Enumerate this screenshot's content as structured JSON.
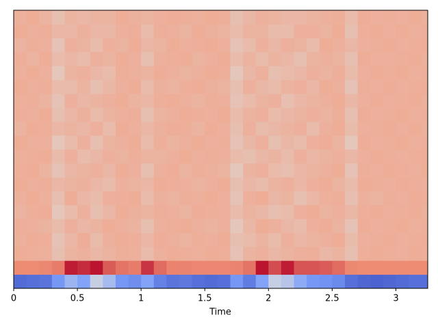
{
  "chart_data": {
    "type": "heatmap",
    "colormap": "coolwarm",
    "clim": [
      -500,
      250
    ],
    "xlabel": "Time",
    "xlim": [
      0,
      3.25
    ],
    "xticks": [
      0,
      0.5,
      1,
      1.5,
      2,
      2.5,
      3
    ],
    "x_bins": [
      0,
      0.1,
      0.2,
      0.3,
      0.4,
      0.5,
      0.6,
      0.7,
      0.8,
      0.9,
      1,
      1.1,
      1.2,
      1.3,
      1.4,
      1.5,
      1.6,
      1.7,
      1.8,
      1.9,
      2,
      2.1,
      2.2,
      2.3,
      2.4,
      2.5,
      2.6,
      2.7,
      2.8,
      2.9,
      3,
      3.1,
      3.2,
      3.25
    ],
    "rows": [
      [
        -430,
        -420,
        -410,
        -330,
        -250,
        -300,
        -170,
        -230,
        -330,
        -350,
        -300,
        -380,
        -410,
        -400,
        -420,
        -430,
        -420,
        -330,
        -390,
        -300,
        -170,
        -200,
        -280,
        -330,
        -340,
        -360,
        -420,
        -440,
        -450,
        -440,
        -430,
        -420,
        -420
      ],
      [
        80,
        80,
        85,
        100,
        220,
        200,
        230,
        140,
        110,
        100,
        190,
        120,
        90,
        90,
        85,
        85,
        85,
        90,
        110,
        230,
        160,
        220,
        150,
        150,
        140,
        120,
        85,
        80,
        80,
        80,
        80,
        80,
        80
      ],
      [
        10,
        5,
        0,
        -40,
        -10,
        0,
        -20,
        -10,
        5,
        0,
        -30,
        0,
        10,
        5,
        0,
        10,
        5,
        -50,
        -10,
        0,
        -20,
        -10,
        0,
        5,
        -20,
        -10,
        -40,
        5,
        10,
        5,
        0,
        10,
        5
      ],
      [
        0,
        10,
        5,
        -50,
        -20,
        10,
        -30,
        0,
        10,
        5,
        -20,
        10,
        0,
        -10,
        5,
        0,
        10,
        -40,
        -30,
        -10,
        -30,
        0,
        -20,
        -10,
        0,
        10,
        -30,
        0,
        5,
        10,
        0,
        5,
        10
      ],
      [
        5,
        0,
        -10,
        -30,
        0,
        -20,
        -10,
        10,
        0,
        -10,
        -40,
        0,
        5,
        10,
        0,
        -10,
        0,
        -60,
        -20,
        10,
        0,
        -20,
        -30,
        0,
        10,
        -10,
        -50,
        10,
        0,
        5,
        10,
        0,
        5
      ],
      [
        -10,
        5,
        10,
        -60,
        -30,
        0,
        -40,
        -20,
        10,
        0,
        -10,
        5,
        0,
        -10,
        10,
        5,
        0,
        -30,
        -10,
        -20,
        -40,
        -30,
        0,
        10,
        -10,
        0,
        -20,
        5,
        10,
        0,
        5,
        10,
        0
      ],
      [
        0,
        10,
        0,
        -40,
        10,
        -20,
        -30,
        0,
        5,
        10,
        -30,
        0,
        -10,
        5,
        0,
        10,
        0,
        -50,
        0,
        10,
        -20,
        -10,
        -40,
        -20,
        0,
        5,
        -40,
        0,
        -10,
        5,
        0,
        10,
        5
      ],
      [
        10,
        0,
        5,
        -20,
        -10,
        0,
        -20,
        -30,
        0,
        -10,
        -20,
        10,
        5,
        0,
        -10,
        0,
        10,
        -40,
        -20,
        -30,
        -10,
        0,
        -20,
        0,
        10,
        -10,
        -30,
        10,
        5,
        0,
        10,
        5,
        0
      ],
      [
        5,
        10,
        -10,
        -50,
        -20,
        -10,
        0,
        -20,
        10,
        0,
        -40,
        0,
        10,
        -10,
        5,
        0,
        -10,
        -60,
        -10,
        0,
        -30,
        -40,
        -20,
        -10,
        0,
        10,
        -50,
        5,
        0,
        10,
        5,
        0,
        10
      ],
      [
        0,
        5,
        10,
        -30,
        0,
        -30,
        -20,
        0,
        -10,
        5,
        -10,
        -10,
        0,
        10,
        0,
        5,
        0,
        -30,
        -40,
        -20,
        -10,
        -30,
        0,
        -20,
        -10,
        0,
        -20,
        0,
        10,
        5,
        0,
        5,
        10
      ],
      [
        10,
        0,
        0,
        -60,
        -30,
        0,
        -40,
        -10,
        0,
        10,
        -30,
        5,
        -10,
        0,
        10,
        0,
        5,
        -50,
        -20,
        0,
        -40,
        -20,
        -30,
        0,
        10,
        -10,
        -60,
        10,
        0,
        5,
        10,
        0,
        5
      ],
      [
        -10,
        10,
        5,
        -20,
        -10,
        -20,
        0,
        -30,
        10,
        0,
        -20,
        0,
        10,
        5,
        -10,
        10,
        0,
        -40,
        0,
        -30,
        -20,
        -10,
        0,
        -30,
        0,
        10,
        -30,
        0,
        5,
        10,
        0,
        10,
        0
      ],
      [
        5,
        0,
        10,
        -40,
        -20,
        0,
        -30,
        -10,
        0,
        5,
        -40,
        -10,
        0,
        10,
        5,
        0,
        10,
        -30,
        -10,
        0,
        -30,
        -20,
        -10,
        0,
        -10,
        5,
        -40,
        10,
        0,
        5,
        10,
        0,
        5
      ],
      [
        0,
        5,
        -10,
        -50,
        0,
        -20,
        -10,
        0,
        10,
        -10,
        -20,
        5,
        10,
        0,
        -10,
        5,
        0,
        -50,
        -30,
        -10,
        0,
        -40,
        -20,
        -10,
        0,
        10,
        -20,
        0,
        10,
        0,
        5,
        10,
        0
      ],
      [
        10,
        0,
        5,
        -30,
        -30,
        -10,
        -40,
        -20,
        0,
        10,
        -30,
        0,
        -10,
        5,
        10,
        0,
        -10,
        -40,
        0,
        -20,
        -30,
        -10,
        0,
        -20,
        10,
        0,
        -50,
        5,
        0,
        10,
        0,
        5,
        10
      ],
      [
        0,
        10,
        0,
        -60,
        -10,
        0,
        -20,
        -30,
        5,
        0,
        -10,
        10,
        0,
        -10,
        0,
        10,
        5,
        -60,
        -20,
        0,
        -40,
        -30,
        -20,
        0,
        -10,
        5,
        -30,
        0,
        10,
        5,
        10,
        0,
        5
      ],
      [
        5,
        -10,
        10,
        -30,
        -20,
        -30,
        0,
        -10,
        10,
        0,
        -40,
        0,
        5,
        10,
        -10,
        0,
        10,
        -30,
        -10,
        -30,
        -10,
        -20,
        -40,
        -10,
        0,
        -10,
        -40,
        10,
        0,
        0,
        5,
        10,
        0
      ],
      [
        -10,
        5,
        0,
        -50,
        0,
        -10,
        -30,
        0,
        -10,
        10,
        -20,
        -10,
        10,
        0,
        5,
        10,
        0,
        -50,
        -30,
        0,
        -20,
        0,
        -10,
        -30,
        10,
        0,
        -20,
        0,
        5,
        10,
        0,
        5,
        10
      ],
      [
        10,
        0,
        5,
        -20,
        -20,
        0,
        -20,
        -20,
        0,
        5,
        -30,
        5,
        0,
        -10,
        10,
        0,
        -10,
        -30,
        -10,
        -10,
        -30,
        -30,
        0,
        0,
        -10,
        10,
        -40,
        5,
        10,
        0,
        10,
        0,
        5
      ],
      [
        0,
        10,
        -10,
        -40,
        -10,
        -20,
        -10,
        -10,
        10,
        0,
        -10,
        0,
        10,
        5,
        0,
        10,
        5,
        -40,
        -20,
        0,
        -10,
        -20,
        -20,
        -10,
        0,
        5,
        -30,
        10,
        0,
        5,
        0,
        10,
        0
      ]
    ]
  }
}
